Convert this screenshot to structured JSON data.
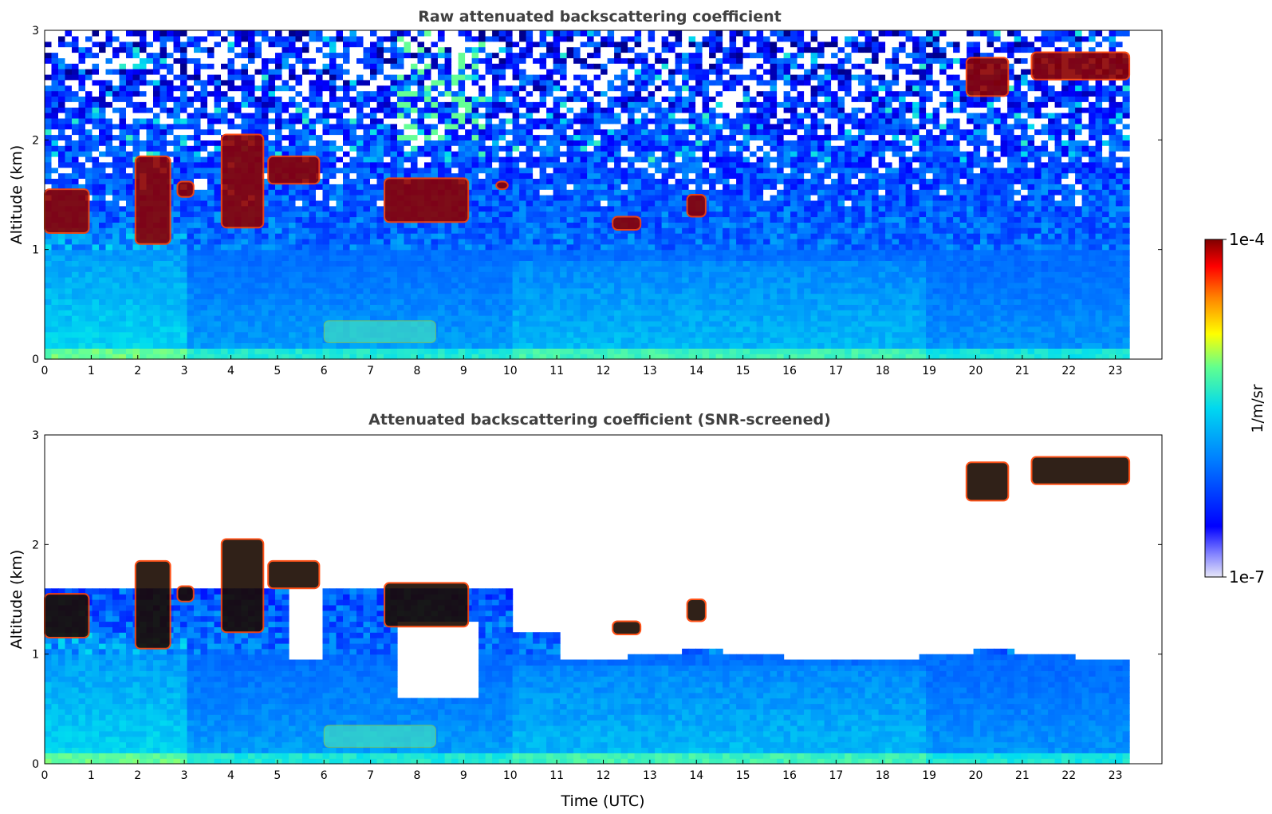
{
  "chart_data": [
    {
      "type": "heatmap",
      "title": "Raw attenuated backscattering coefficient",
      "xlabel": "",
      "ylabel": "Altitude (km)",
      "xlim": [
        0,
        24
      ],
      "ylim": [
        0,
        3
      ],
      "x_data_extent": [
        0,
        23.3
      ],
      "xticks": [
        "0",
        "1",
        "2",
        "3",
        "4",
        "5",
        "6",
        "7",
        "8",
        "9",
        "10",
        "11",
        "12",
        "13",
        "14",
        "15",
        "16",
        "17",
        "18",
        "19",
        "20",
        "21",
        "22",
        "23"
      ],
      "yticks": [
        "0",
        "1",
        "2",
        "3"
      ],
      "screened": false,
      "features": [
        {
          "kind": "cloud",
          "x": [
            0.0,
            0.95
          ],
          "y": [
            1.15,
            1.55
          ]
        },
        {
          "kind": "cloud",
          "x": [
            1.95,
            2.7
          ],
          "y": [
            1.05,
            1.85
          ]
        },
        {
          "kind": "cloud",
          "x": [
            2.85,
            3.2
          ],
          "y": [
            1.48,
            1.62
          ]
        },
        {
          "kind": "cloud",
          "x": [
            3.8,
            4.7
          ],
          "y": [
            1.2,
            2.05
          ]
        },
        {
          "kind": "cloud",
          "x": [
            4.8,
            5.9
          ],
          "y": [
            1.6,
            1.85
          ]
        },
        {
          "kind": "cloud",
          "x": [
            7.3,
            9.1
          ],
          "y": [
            1.25,
            1.65
          ]
        },
        {
          "kind": "cloud",
          "x": [
            9.7,
            9.95
          ],
          "y": [
            1.55,
            1.62
          ]
        },
        {
          "kind": "cloud",
          "x": [
            12.2,
            12.8
          ],
          "y": [
            1.18,
            1.3
          ]
        },
        {
          "kind": "cloud",
          "x": [
            13.8,
            14.2
          ],
          "y": [
            1.3,
            1.5
          ]
        },
        {
          "kind": "cloud",
          "x": [
            19.8,
            20.7
          ],
          "y": [
            2.4,
            2.75
          ]
        },
        {
          "kind": "cloud",
          "x": [
            21.2,
            23.3
          ],
          "y": [
            2.55,
            2.8
          ]
        },
        {
          "kind": "aerosol-layer",
          "x": [
            6.0,
            8.4
          ],
          "y": [
            0.15,
            0.35
          ]
        }
      ]
    },
    {
      "type": "heatmap",
      "title": "Attenuated backscattering coefficient (SNR-screened)",
      "xlabel": "Time (UTC)",
      "ylabel": "Altitude (km)",
      "xlim": [
        0,
        24
      ],
      "ylim": [
        0,
        3
      ],
      "x_data_extent": [
        0,
        23.3
      ],
      "xticks": [
        "0",
        "1",
        "2",
        "3",
        "4",
        "5",
        "6",
        "7",
        "8",
        "9",
        "10",
        "11",
        "12",
        "13",
        "14",
        "15",
        "16",
        "17",
        "18",
        "19",
        "20",
        "21",
        "22",
        "23"
      ],
      "yticks": [
        "0",
        "1",
        "2",
        "3"
      ],
      "screened": true,
      "features": [
        {
          "kind": "cloud",
          "x": [
            0.0,
            0.95
          ],
          "y": [
            1.15,
            1.55
          ]
        },
        {
          "kind": "cloud",
          "x": [
            1.95,
            2.7
          ],
          "y": [
            1.05,
            1.85
          ]
        },
        {
          "kind": "cloud",
          "x": [
            2.85,
            3.2
          ],
          "y": [
            1.48,
            1.62
          ]
        },
        {
          "kind": "cloud",
          "x": [
            3.8,
            4.7
          ],
          "y": [
            1.2,
            2.05
          ]
        },
        {
          "kind": "cloud",
          "x": [
            4.8,
            5.9
          ],
          "y": [
            1.6,
            1.85
          ]
        },
        {
          "kind": "cloud",
          "x": [
            7.3,
            9.1
          ],
          "y": [
            1.25,
            1.65
          ]
        },
        {
          "kind": "cloud",
          "x": [
            12.2,
            12.8
          ],
          "y": [
            1.18,
            1.3
          ]
        },
        {
          "kind": "cloud",
          "x": [
            13.8,
            14.2
          ],
          "y": [
            1.3,
            1.5
          ]
        },
        {
          "kind": "cloud",
          "x": [
            19.8,
            20.7
          ],
          "y": [
            2.4,
            2.75
          ]
        },
        {
          "kind": "cloud",
          "x": [
            21.2,
            23.3
          ],
          "y": [
            2.55,
            2.8
          ]
        },
        {
          "kind": "aerosol-layer",
          "x": [
            6.0,
            8.4
          ],
          "y": [
            0.15,
            0.35
          ]
        }
      ]
    }
  ],
  "colorbar": {
    "label": "1/m/sr",
    "min_label": "1e-7",
    "max_label": "1e-4",
    "min": 1e-07,
    "max": 0.0001,
    "scale": "log",
    "colormap": "jet",
    "colors": [
      "#dcdcf5",
      "#0000ff",
      "#00a0ff",
      "#00e0e0",
      "#80ff80",
      "#ffff00",
      "#ff8000",
      "#ff0000",
      "#800000"
    ]
  }
}
